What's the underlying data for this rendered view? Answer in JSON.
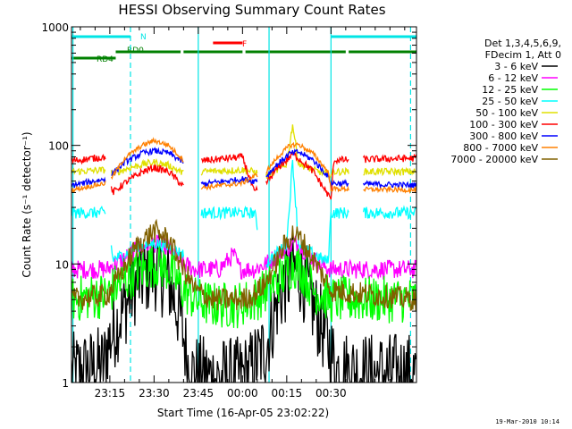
{
  "chart_data": {
    "type": "line",
    "title": "HESSI Observing Summary Count Rates",
    "xlabel": "Start Time (16-Apr-05 23:02:22)",
    "ylabel": "Count Rate (s⁻¹ detector⁻¹)",
    "yscale": "log",
    "ylim": [
      1,
      1000
    ],
    "xlim_min": [
      0,
      117
    ],
    "x_ticks": [
      {
        "min": 13,
        "label": "23:15"
      },
      {
        "min": 28,
        "label": "23:30"
      },
      {
        "min": 43,
        "label": "23:45"
      },
      {
        "min": 58,
        "label": "00:00"
      },
      {
        "min": 73,
        "label": "00:15"
      },
      {
        "min": 88,
        "label": "00:30"
      }
    ],
    "y_ticks": [
      {
        "value": 1,
        "label": "1"
      },
      {
        "value": 10,
        "label": "10"
      },
      {
        "value": 100,
        "label": "100"
      },
      {
        "value": 1000,
        "label": "1000"
      }
    ],
    "legend": {
      "header": [
        "Det 1,3,4,5,6,9,",
        "FDecim 1, Att 0"
      ],
      "placement": "right"
    },
    "flag_bars": [
      {
        "label": "N",
        "color": "#00e5e5",
        "segments": [
          [
            0,
            20
          ],
          [
            88,
            117
          ]
        ]
      },
      {
        "label": "F",
        "color": "#ff0000",
        "segments": [
          [
            48,
            58
          ]
        ]
      },
      {
        "label": "RD0",
        "color": "#008000",
        "segments": [
          [
            15,
            37
          ],
          [
            38,
            58
          ],
          [
            59,
            93
          ],
          [
            94,
            117
          ]
        ]
      },
      {
        "label": "RD4",
        "color": "#008000",
        "segments": [
          [
            0,
            15
          ]
        ]
      }
    ],
    "vlines": [
      {
        "min": 0.5,
        "color": "#00e5e5",
        "style": "solid"
      },
      {
        "min": 20,
        "color": "#00e5e5",
        "style": "dashed"
      },
      {
        "min": 43,
        "color": "#00e5e5",
        "style": "solid"
      },
      {
        "min": 67,
        "color": "#00e5e5",
        "style": "solid"
      },
      {
        "min": 88,
        "color": "#00e5e5",
        "style": "solid"
      },
      {
        "min": 115,
        "color": "#00e5e5",
        "style": "dashed"
      }
    ],
    "gaps": [
      [
        11.5,
        13.5
      ],
      [
        38,
        44
      ],
      [
        63,
        66
      ],
      [
        94,
        99
      ]
    ],
    "series": [
      {
        "name": "3 - 6 keV",
        "color": "#000000",
        "noise": 0.35,
        "points": [
          [
            0,
            1.2
          ],
          [
            6,
            1.3
          ],
          [
            11,
            1.4
          ],
          [
            12,
            2.0
          ],
          [
            15,
            3
          ],
          [
            22,
            7
          ],
          [
            28,
            9
          ],
          [
            33,
            7
          ],
          [
            37,
            3.5
          ],
          [
            40,
            1.2
          ],
          [
            48,
            1.1
          ],
          [
            56,
            1.1
          ],
          [
            60,
            1.2
          ],
          [
            66,
            2
          ],
          [
            70,
            5
          ],
          [
            75,
            9
          ],
          [
            78,
            8
          ],
          [
            81,
            5
          ],
          [
            86,
            2.5
          ],
          [
            90,
            1.3
          ],
          [
            100,
            1.2
          ],
          [
            110,
            1.2
          ],
          [
            117,
            1.2
          ]
        ]
      },
      {
        "name": "6 - 12 keV",
        "color": "#ff00ff",
        "noise": 0.08,
        "points": [
          [
            0,
            9
          ],
          [
            12,
            9
          ],
          [
            15,
            10
          ],
          [
            22,
            13
          ],
          [
            28,
            15
          ],
          [
            33,
            13.5
          ],
          [
            38,
            10
          ],
          [
            42,
            9
          ],
          [
            50,
            9
          ],
          [
            55,
            12
          ],
          [
            57,
            9
          ],
          [
            62,
            9
          ],
          [
            66,
            10
          ],
          [
            72,
            13
          ],
          [
            76,
            15
          ],
          [
            79,
            13
          ],
          [
            84,
            10
          ],
          [
            88,
            9
          ],
          [
            117,
            9
          ]
        ]
      },
      {
        "name": "12 - 25 keV",
        "color": "#00ff00",
        "noise": 0.2,
        "points": [
          [
            0,
            5
          ],
          [
            12,
            5.5
          ],
          [
            15,
            6.5
          ],
          [
            22,
            8.5
          ],
          [
            28,
            10
          ],
          [
            33,
            9
          ],
          [
            38,
            6
          ],
          [
            42,
            5
          ],
          [
            48,
            4.5
          ],
          [
            56,
            4.5
          ],
          [
            62,
            5
          ],
          [
            66,
            6
          ],
          [
            72,
            8
          ],
          [
            75,
            10
          ],
          [
            78,
            9
          ],
          [
            82,
            6
          ],
          [
            88,
            5
          ],
          [
            117,
            5
          ]
        ]
      },
      {
        "name": "25 - 50 keV",
        "color": "#00ffff",
        "noise": 0.05,
        "points": [
          [
            0,
            27
          ],
          [
            11.5,
            27
          ],
          [
            12,
            30
          ],
          [
            14,
            11
          ],
          [
            18,
            12
          ],
          [
            22,
            14
          ],
          [
            28,
            15
          ],
          [
            33,
            14
          ],
          [
            38,
            12
          ],
          [
            43,
            11
          ],
          [
            44,
            27
          ],
          [
            58,
            27
          ],
          [
            62,
            27
          ],
          [
            66,
            10
          ],
          [
            69,
            12
          ],
          [
            73,
            15
          ],
          [
            75,
            75
          ],
          [
            77,
            15
          ],
          [
            80,
            13
          ],
          [
            85,
            11
          ],
          [
            87,
            10.5
          ],
          [
            88,
            27
          ],
          [
            117,
            27
          ]
        ]
      },
      {
        "name": "50 - 100 keV",
        "color": "#e0e000",
        "noise": 0.03,
        "points": [
          [
            0,
            60
          ],
          [
            11.5,
            62
          ],
          [
            12,
            62
          ],
          [
            14,
            58
          ],
          [
            20,
            65
          ],
          [
            25,
            70
          ],
          [
            28,
            72
          ],
          [
            33,
            68
          ],
          [
            38,
            58
          ],
          [
            42,
            55
          ],
          [
            44,
            60
          ],
          [
            58,
            62
          ],
          [
            62,
            60
          ],
          [
            66,
            55
          ],
          [
            70,
            62
          ],
          [
            73,
            70
          ],
          [
            75,
            150
          ],
          [
            77,
            70
          ],
          [
            82,
            62
          ],
          [
            88,
            56
          ],
          [
            89,
            60
          ],
          [
            117,
            60
          ]
        ]
      },
      {
        "name": "100 - 300 keV",
        "color": "#ff0000",
        "noise": 0.03,
        "points": [
          [
            0,
            74
          ],
          [
            11.5,
            80
          ],
          [
            12,
            50
          ],
          [
            14,
            40
          ],
          [
            18,
            48
          ],
          [
            24,
            60
          ],
          [
            28,
            65
          ],
          [
            33,
            60
          ],
          [
            38,
            45
          ],
          [
            43,
            40
          ],
          [
            44,
            74
          ],
          [
            58,
            80
          ],
          [
            62,
            40
          ],
          [
            66,
            48
          ],
          [
            70,
            65
          ],
          [
            73,
            75
          ],
          [
            75,
            85
          ],
          [
            77,
            78
          ],
          [
            82,
            60
          ],
          [
            88,
            35
          ],
          [
            89,
            75
          ],
          [
            117,
            78
          ]
        ]
      },
      {
        "name": "300 - 800 keV",
        "color": "#0000ff",
        "noise": 0.025,
        "points": [
          [
            0,
            46
          ],
          [
            11.5,
            52
          ],
          [
            12,
            55
          ],
          [
            14,
            58
          ],
          [
            18,
            72
          ],
          [
            24,
            86
          ],
          [
            28,
            90
          ],
          [
            33,
            86
          ],
          [
            38,
            72
          ],
          [
            43,
            62
          ],
          [
            44,
            47
          ],
          [
            58,
            52
          ],
          [
            62,
            50
          ],
          [
            66,
            55
          ],
          [
            70,
            70
          ],
          [
            74,
            85
          ],
          [
            77,
            88
          ],
          [
            82,
            75
          ],
          [
            87,
            55
          ],
          [
            88,
            48
          ],
          [
            117,
            46
          ]
        ]
      },
      {
        "name": "800 - 7000 keV",
        "color": "#ff8000",
        "noise": 0.02,
        "points": [
          [
            0,
            42
          ],
          [
            11.5,
            48
          ],
          [
            12,
            50
          ],
          [
            14,
            55
          ],
          [
            18,
            78
          ],
          [
            24,
            100
          ],
          [
            28,
            110
          ],
          [
            33,
            100
          ],
          [
            38,
            75
          ],
          [
            43,
            55
          ],
          [
            44,
            44
          ],
          [
            58,
            48
          ],
          [
            62,
            55
          ],
          [
            66,
            60
          ],
          [
            70,
            80
          ],
          [
            74,
            100
          ],
          [
            77,
            102
          ],
          [
            82,
            85
          ],
          [
            87,
            60
          ],
          [
            88,
            43
          ],
          [
            117,
            42
          ]
        ]
      },
      {
        "name": "7000 - 20000 keV",
        "color": "#806000",
        "noise": 0.1,
        "points": [
          [
            0,
            5
          ],
          [
            12,
            5.5
          ],
          [
            15,
            7
          ],
          [
            22,
            14
          ],
          [
            28,
            19
          ],
          [
            33,
            16
          ],
          [
            38,
            9
          ],
          [
            42,
            6
          ],
          [
            48,
            5
          ],
          [
            58,
            5
          ],
          [
            62,
            5.5
          ],
          [
            66,
            7
          ],
          [
            72,
            14
          ],
          [
            75,
            18
          ],
          [
            78,
            16
          ],
          [
            84,
            9
          ],
          [
            88,
            6
          ],
          [
            117,
            5
          ]
        ]
      }
    ]
  },
  "footer": {
    "timestamp": "19-Mar-2010 10:14"
  }
}
